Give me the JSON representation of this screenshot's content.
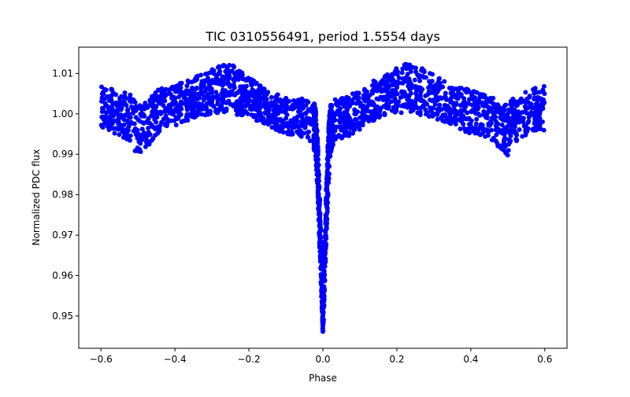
{
  "chart_data": {
    "type": "scatter",
    "title": "TIC 0310556491, period 1.5554 days",
    "xlabel": "Phase",
    "ylabel": "Normalized PDC flux",
    "xlim": [
      -0.66,
      0.66
    ],
    "ylim": [
      0.942,
      1.0165
    ],
    "xticks": [
      -0.6,
      -0.4,
      -0.2,
      0.0,
      0.2,
      0.4,
      0.6
    ],
    "xtick_labels": [
      "−0.6",
      "−0.4",
      "−0.2",
      "0.0",
      "0.2",
      "0.4",
      "0.6"
    ],
    "yticks": [
      0.95,
      0.96,
      0.97,
      0.98,
      0.99,
      1.0,
      1.01
    ],
    "ytick_labels": [
      "0.95",
      "0.96",
      "0.97",
      "0.98",
      "0.99",
      "1.00",
      "1.01"
    ],
    "grid": false,
    "series": [
      {
        "name": "flux",
        "color": "#0000ff",
        "marker": "circle",
        "envelope": {
          "phase": [
            -0.6,
            -0.56,
            -0.52,
            -0.5,
            -0.48,
            -0.45,
            -0.4,
            -0.35,
            -0.3,
            -0.27,
            -0.25,
            -0.22,
            -0.2,
            -0.15,
            -0.1,
            -0.06,
            -0.03,
            -0.02,
            -0.015,
            -0.01,
            -0.007,
            -0.004,
            -0.002,
            0.0,
            0.002,
            0.004,
            0.007,
            0.01,
            0.015,
            0.02,
            0.03,
            0.06,
            0.1,
            0.15,
            0.2,
            0.22,
            0.25,
            0.3,
            0.35,
            0.4,
            0.45,
            0.48,
            0.5,
            0.52,
            0.56,
            0.6
          ],
          "flux_lower": [
            0.996,
            0.995,
            0.993,
            0.9895,
            0.991,
            0.995,
            0.997,
            0.999,
            1.0,
            1.0005,
            1.0,
            0.9995,
            0.999,
            0.997,
            0.995,
            0.994,
            0.993,
            0.99,
            0.982,
            0.97,
            0.962,
            0.955,
            0.949,
            0.9455,
            0.949,
            0.955,
            0.962,
            0.97,
            0.982,
            0.99,
            0.993,
            0.994,
            0.996,
            0.999,
            1.0005,
            1.0,
            1.0,
            0.999,
            0.997,
            0.995,
            0.994,
            0.991,
            0.9895,
            0.993,
            0.995,
            0.996
          ],
          "flux_upper": [
            1.007,
            1.006,
            1.005,
            1.002,
            1.003,
            1.006,
            1.007,
            1.009,
            1.011,
            1.0123,
            1.0122,
            1.011,
            1.009,
            1.006,
            1.004,
            1.004,
            1.0035,
            1.002,
            0.996,
            0.985,
            0.975,
            0.966,
            0.958,
            0.9535,
            0.958,
            0.966,
            0.975,
            0.985,
            0.996,
            1.002,
            1.0035,
            1.004,
            1.006,
            1.009,
            1.0115,
            1.0125,
            1.012,
            1.01,
            1.007,
            1.006,
            1.005,
            1.003,
            1.002,
            1.005,
            1.006,
            1.007
          ]
        }
      }
    ]
  }
}
